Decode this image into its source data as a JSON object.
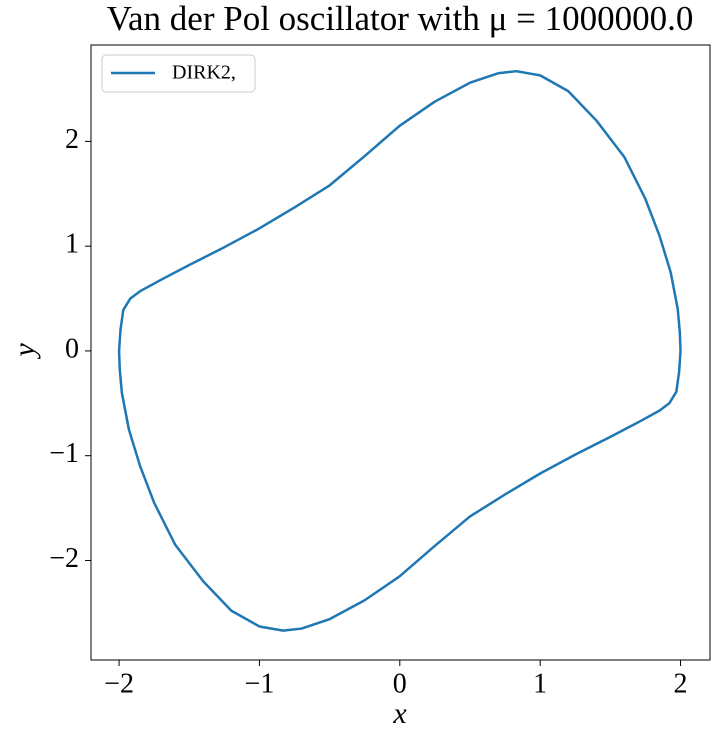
{
  "chart_data": {
    "type": "line",
    "title": "Van der Pol oscillator with μ = 1000000.0",
    "x_label": "x",
    "y_label": "y",
    "x": [
      -2,
      -1.99,
      -1.97,
      -1.92,
      -1.85,
      -1.7,
      -1.5,
      -1.25,
      -1,
      -0.75,
      -0.5,
      -0.25,
      0,
      0.25,
      0.5,
      0.7,
      0.83,
      1,
      1.2,
      1.4,
      1.6,
      1.75,
      1.85,
      1.93,
      1.98,
      1.995,
      2.0,
      1.99,
      1.97,
      1.92,
      1.85,
      1.7,
      1.5,
      1.25,
      1,
      0.75,
      0.5,
      0.25,
      0,
      -0.25,
      -0.5,
      -0.7,
      -0.83,
      -1,
      -1.2,
      -1.4,
      -1.6,
      -1.75,
      -1.85,
      -1.93,
      -1.98,
      -1.995,
      -2.0
    ],
    "series": [
      {
        "name": "DIRK2,",
        "color": "#1f77b4",
        "values": [
          0,
          0.2,
          0.39,
          0.5,
          0.57,
          0.68,
          0.82,
          0.99,
          1.17,
          1.37,
          1.58,
          1.86,
          2.15,
          2.38,
          2.56,
          2.65,
          2.67,
          2.63,
          2.48,
          2.2,
          1.85,
          1.45,
          1.1,
          0.75,
          0.4,
          0.18,
          0,
          -0.2,
          -0.39,
          -0.5,
          -0.57,
          -0.68,
          -0.82,
          -0.99,
          -1.17,
          -1.37,
          -1.58,
          -1.86,
          -2.15,
          -2.38,
          -2.56,
          -2.65,
          -2.67,
          -2.63,
          -2.48,
          -2.2,
          -1.85,
          -1.45,
          -1.1,
          -0.75,
          -0.4,
          -0.18,
          0
        ]
      }
    ],
    "xlim": [
      -2.2,
      2.21
    ],
    "ylim": [
      -2.95,
      2.92
    ],
    "xticks": [
      {
        "value": -2,
        "label": "−2"
      },
      {
        "value": -1,
        "label": "−1"
      },
      0,
      1,
      2
    ],
    "yticks": [
      {
        "value": -2,
        "label": "−2"
      },
      {
        "value": -1,
        "label": "−1"
      },
      0,
      1,
      2
    ],
    "grid": false,
    "legend": "upper left"
  }
}
